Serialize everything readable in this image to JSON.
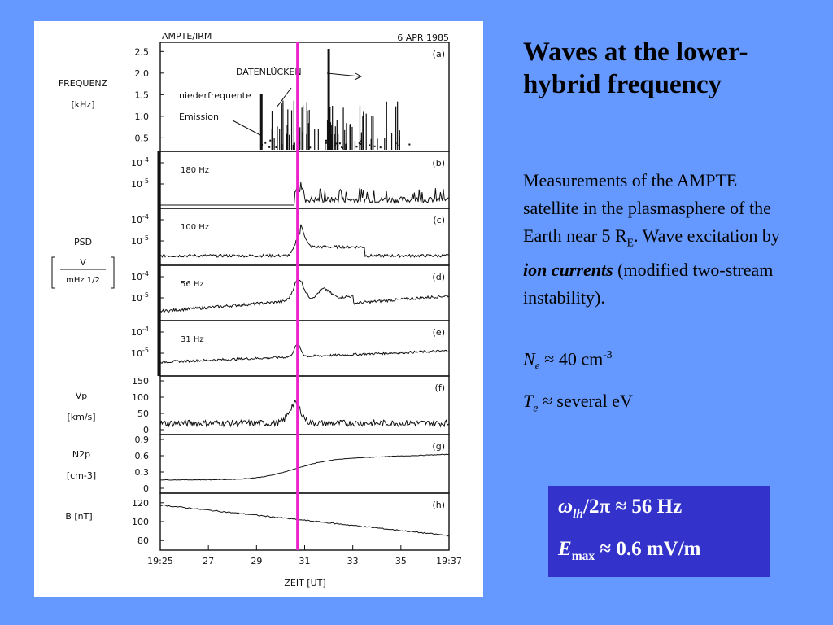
{
  "slide": {
    "title": "Waves at the lower-hybrid frequency",
    "description_pre": "Measurements of the AMPTE satellite in the plasmasphere of the Earth near 5 R",
    "description_sub": "E",
    "description_mid": ". Wave excitation by ",
    "description_em": "ion currents",
    "description_post": " (modified two-stream instability).",
    "param1": {
      "symbol": "N",
      "sub": "e",
      "text": " ≈ 40 cm",
      "sup": "-3"
    },
    "param2": {
      "symbol": "T",
      "sub": "e",
      "text": " ≈ several eV"
    },
    "result1": {
      "symbol": "ω",
      "sub": "lh",
      "text": "/2π ≈ 56 Hz"
    },
    "result2": {
      "symbol": "E",
      "sub": "max",
      "text": " ≈ 0.6 mV/m"
    }
  },
  "chart_data": {
    "type": "line",
    "header_left": "AMPTE/IRM",
    "header_right": "6 APR 1985",
    "xlabel": "ZEIT [UT]",
    "x_ticks": [
      "19:25",
      "27",
      "29",
      "31",
      "33",
      "35",
      "19:37"
    ],
    "x_range_minutes": [
      25,
      37
    ],
    "marker_time_minutes": 30.7,
    "marker_color": "#ee22cc",
    "annotations": [
      "DATENLÜCKEN",
      "niederfrequente",
      "Emission"
    ],
    "panels": [
      {
        "id": "a",
        "tag": "(a)",
        "ylabel": [
          "FREQUENZ",
          "[kHz]"
        ],
        "y_ticks": [
          "2.5",
          "2.0",
          "1.5",
          "1.0",
          "0.5"
        ],
        "ylim": [
          0.3,
          2.6
        ]
      },
      {
        "id": "b",
        "tag": "(b)",
        "label": "180 Hz",
        "y_ticks": [
          "10-4",
          "10-5"
        ]
      },
      {
        "id": "c",
        "tag": "(c)",
        "label": "100 Hz",
        "y_ticks": [
          "10-4",
          "10-5"
        ]
      },
      {
        "id": "d",
        "tag": "(d)",
        "label": "56 Hz",
        "y_ticks": [
          "10-4",
          "10-5"
        ]
      },
      {
        "id": "e",
        "tag": "(e)",
        "label": "31 Hz",
        "y_ticks": [
          "10-4",
          "10-5"
        ]
      },
      {
        "id": "f",
        "tag": "(f)",
        "ylabel": [
          "Vp",
          "[km/s]"
        ],
        "y_ticks": [
          "150",
          "100",
          "50",
          "0"
        ],
        "ylim": [
          0,
          150
        ]
      },
      {
        "id": "g",
        "tag": "(g)",
        "ylabel": [
          "N2p",
          "[cm-3]"
        ],
        "y_ticks": [
          "0.9",
          "0.6",
          "0.3",
          "0"
        ],
        "ylim": [
          0,
          0.9
        ]
      },
      {
        "id": "h",
        "tag": "(h)",
        "ylabel": [
          "B  [nT]"
        ],
        "y_ticks": [
          "120",
          "100",
          "80"
        ],
        "ylim": [
          75,
          125
        ]
      }
    ],
    "psd_ylabel": [
      "PSD",
      "V",
      "mHz 1/2"
    ]
  }
}
